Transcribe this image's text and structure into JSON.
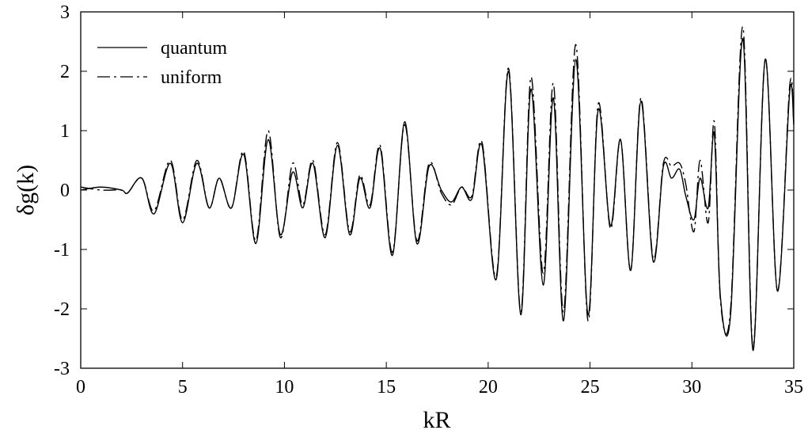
{
  "chart_data": {
    "type": "line",
    "title": "",
    "xlabel": "kR",
    "ylabel": "δg(k)",
    "xlim": [
      0,
      35
    ],
    "ylim": [
      -3,
      3
    ],
    "xticks": [
      0,
      5,
      10,
      15,
      20,
      25,
      30,
      35
    ],
    "yticks": [
      -3,
      -2,
      -1,
      0,
      1,
      2,
      3
    ],
    "grid": false,
    "legend": "top-left",
    "series": [
      {
        "name": "quantum",
        "style": "solid",
        "color": "#000000",
        "x": [
          0,
          1,
          2,
          2.3,
          3.0,
          3.6,
          4.4,
          5.0,
          5.7,
          6.3,
          6.8,
          7.4,
          8.0,
          8.6,
          9.2,
          9.8,
          10.4,
          10.9,
          11.4,
          12.0,
          12.6,
          13.2,
          13.7,
          14.2,
          14.7,
          15.3,
          15.9,
          16.5,
          17.1,
          17.7,
          18.2,
          18.7,
          19.2,
          19.7,
          20.4,
          21.0,
          21.6,
          22.1,
          22.7,
          23.2,
          23.7,
          24.3,
          24.9,
          25.4,
          26.0,
          26.5,
          27.0,
          27.5,
          28.1,
          28.6,
          29.0,
          29.4,
          29.7,
          30.1,
          30.4,
          30.8,
          31.1,
          31.4,
          31.9,
          32.5,
          33.0,
          33.6,
          34.2,
          34.8,
          35
        ],
        "y": [
          0,
          0.05,
          0.0,
          -0.05,
          0.2,
          -0.4,
          0.45,
          -0.55,
          0.45,
          -0.3,
          0.2,
          -0.3,
          0.6,
          -0.9,
          0.85,
          -0.75,
          0.3,
          -0.3,
          0.45,
          -0.8,
          0.75,
          -0.75,
          0.2,
          -0.3,
          0.7,
          -1.1,
          1.15,
          -0.9,
          0.4,
          0.0,
          -0.2,
          0.05,
          -0.15,
          0.75,
          -1.5,
          2.0,
          -2.1,
          1.7,
          -1.6,
          1.55,
          -2.2,
          2.2,
          -2.1,
          1.35,
          -0.6,
          0.85,
          -1.35,
          1.5,
          -1.2,
          0.4,
          0.2,
          0.35,
          -0.1,
          -0.5,
          0.2,
          -0.3,
          0.95,
          -1.8,
          -2.1,
          2.55,
          -2.7,
          2.2,
          -1.7,
          1.65,
          1.1
        ]
      },
      {
        "name": "uniform",
        "style": "dashed",
        "color": "#000000",
        "x": [
          0,
          1,
          2,
          2.3,
          3.0,
          3.6,
          4.4,
          5.0,
          5.7,
          6.3,
          6.8,
          7.4,
          8.0,
          8.6,
          9.2,
          9.8,
          10.4,
          10.9,
          11.4,
          12.0,
          12.6,
          13.2,
          13.7,
          14.2,
          14.7,
          15.3,
          15.9,
          16.5,
          17.1,
          17.7,
          18.2,
          18.7,
          19.2,
          19.7,
          20.4,
          21.0,
          21.6,
          22.1,
          22.7,
          23.2,
          23.7,
          24.3,
          24.9,
          25.4,
          26.0,
          26.5,
          27.0,
          27.5,
          28.1,
          28.6,
          29.0,
          29.4,
          29.7,
          30.1,
          30.4,
          30.8,
          31.1,
          31.4,
          31.9,
          32.5,
          33.0,
          33.6,
          34.2,
          34.8,
          35
        ],
        "y": [
          0.05,
          0.0,
          0.0,
          -0.05,
          0.2,
          -0.35,
          0.5,
          -0.5,
          0.5,
          -0.3,
          0.2,
          -0.3,
          0.65,
          -0.85,
          1.0,
          -0.8,
          0.45,
          -0.25,
          0.5,
          -0.75,
          0.8,
          -0.7,
          0.25,
          -0.25,
          0.75,
          -1.05,
          1.1,
          -0.85,
          0.45,
          -0.05,
          -0.25,
          0.05,
          -0.1,
          0.8,
          -1.45,
          2.05,
          -2.05,
          1.9,
          -1.4,
          1.8,
          -2.05,
          2.45,
          -2.2,
          1.45,
          -0.65,
          0.85,
          -1.35,
          1.55,
          -1.15,
          0.45,
          0.4,
          0.45,
          0.1,
          -0.7,
          0.5,
          -0.55,
          1.15,
          -1.85,
          -2.0,
          2.75,
          -2.65,
          2.2,
          -1.7,
          1.75,
          1.15
        ]
      }
    ]
  }
}
